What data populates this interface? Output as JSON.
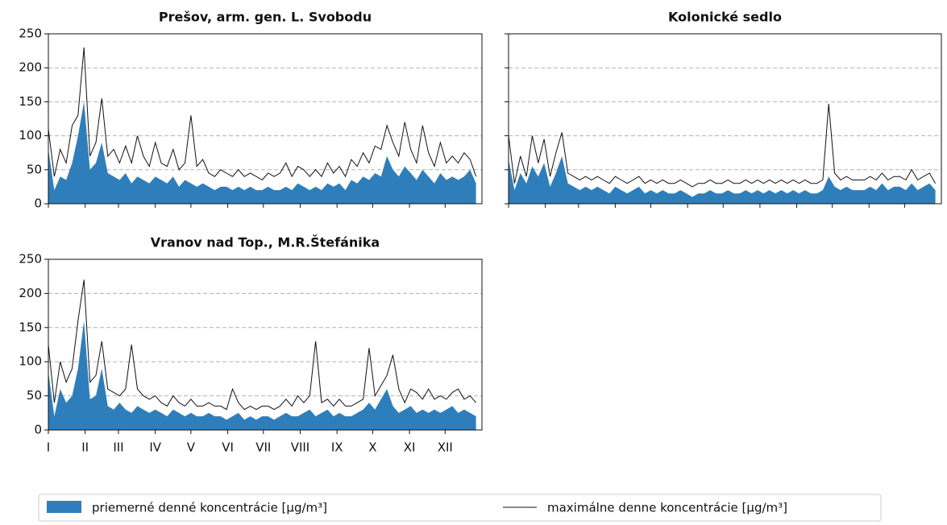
{
  "chart_data": [
    {
      "type": "line",
      "title": "Prešov, arm. gen. L. Svobodu",
      "x": [
        1,
        6,
        11,
        16,
        21,
        26,
        31,
        36,
        41,
        46,
        51,
        56,
        61,
        66,
        71,
        76,
        81,
        86,
        91,
        96,
        101,
        106,
        111,
        116,
        121,
        126,
        131,
        136,
        141,
        146,
        151,
        156,
        161,
        166,
        171,
        176,
        181,
        186,
        191,
        196,
        201,
        206,
        211,
        216,
        221,
        226,
        231,
        236,
        241,
        246,
        251,
        256,
        261,
        266,
        271,
        276,
        281,
        286,
        291,
        296,
        301,
        306,
        311,
        316,
        321,
        326,
        331,
        336,
        341,
        346,
        351,
        356,
        361
      ],
      "xlim": [
        1,
        366
      ],
      "xticks": [
        1,
        32,
        60,
        91,
        121,
        152,
        182,
        213,
        244,
        274,
        305,
        335
      ],
      "ylim": [
        0,
        250
      ],
      "yticks": [
        0,
        50,
        100,
        150,
        200,
        250
      ],
      "grid": true,
      "series": [
        {
          "name": "priemerné denné koncentrácie [µg/m³]",
          "color": "#2f7ebc",
          "fill": true,
          "values": [
            80,
            20,
            40,
            35,
            60,
            100,
            150,
            50,
            60,
            90,
            45,
            40,
            35,
            45,
            30,
            40,
            35,
            30,
            40,
            35,
            30,
            40,
            25,
            35,
            30,
            25,
            30,
            25,
            20,
            25,
            25,
            20,
            25,
            20,
            25,
            20,
            20,
            25,
            20,
            20,
            25,
            20,
            30,
            25,
            20,
            25,
            20,
            30,
            25,
            30,
            20,
            35,
            30,
            40,
            35,
            45,
            40,
            70,
            50,
            40,
            55,
            45,
            35,
            50,
            40,
            30,
            45,
            35,
            40,
            35,
            40,
            50,
            30
          ]
        },
        {
          "name": "maximálne denne koncentrácie [µg/m³]",
          "color": "#111111",
          "fill": false,
          "values": [
            110,
            40,
            80,
            60,
            115,
            130,
            230,
            70,
            90,
            155,
            70,
            80,
            60,
            85,
            60,
            100,
            70,
            55,
            90,
            60,
            55,
            80,
            50,
            60,
            130,
            55,
            65,
            45,
            40,
            50,
            45,
            40,
            50,
            40,
            45,
            40,
            35,
            45,
            40,
            45,
            60,
            40,
            55,
            50,
            40,
            50,
            40,
            60,
            45,
            55,
            40,
            65,
            55,
            75,
            60,
            85,
            80,
            115,
            90,
            70,
            120,
            80,
            60,
            115,
            75,
            55,
            90,
            60,
            70,
            60,
            75,
            65,
            40
          ]
        }
      ]
    },
    {
      "type": "line",
      "title": "Kolonické sedlo",
      "x": [
        1,
        6,
        11,
        16,
        21,
        26,
        31,
        36,
        41,
        46,
        51,
        56,
        61,
        66,
        71,
        76,
        81,
        86,
        91,
        96,
        101,
        106,
        111,
        116,
        121,
        126,
        131,
        136,
        141,
        146,
        151,
        156,
        161,
        166,
        171,
        176,
        181,
        186,
        191,
        196,
        201,
        206,
        211,
        216,
        221,
        226,
        231,
        236,
        241,
        246,
        251,
        256,
        261,
        266,
        271,
        276,
        281,
        286,
        291,
        296,
        301,
        306,
        311,
        316,
        321,
        326,
        331,
        336,
        341,
        346,
        351,
        356,
        361
      ],
      "xlim": [
        1,
        366
      ],
      "xticks": [
        1,
        32,
        60,
        91,
        121,
        152,
        182,
        213,
        244,
        274,
        305,
        335
      ],
      "ylim": [
        0,
        250
      ],
      "yticks": [
        0,
        50,
        100,
        150,
        200,
        250
      ],
      "ytick_labels": false,
      "grid": true,
      "series": [
        {
          "color": "#2f7ebc",
          "fill": true,
          "values": [
            65,
            20,
            45,
            30,
            55,
            40,
            60,
            25,
            45,
            70,
            30,
            25,
            20,
            25,
            20,
            25,
            20,
            15,
            25,
            20,
            15,
            20,
            25,
            15,
            20,
            15,
            20,
            15,
            15,
            20,
            15,
            10,
            15,
            15,
            20,
            15,
            15,
            20,
            15,
            15,
            20,
            15,
            20,
            15,
            20,
            15,
            20,
            15,
            20,
            15,
            20,
            15,
            15,
            20,
            40,
            25,
            20,
            25,
            20,
            20,
            20,
            25,
            20,
            30,
            20,
            25,
            25,
            20,
            30,
            20,
            25,
            30,
            20
          ]
        },
        {
          "color": "#111111",
          "fill": false,
          "values": [
            100,
            30,
            70,
            40,
            100,
            60,
            95,
            40,
            75,
            105,
            45,
            40,
            35,
            40,
            35,
            40,
            35,
            30,
            40,
            35,
            30,
            35,
            40,
            30,
            35,
            30,
            35,
            30,
            30,
            35,
            30,
            25,
            30,
            30,
            35,
            30,
            30,
            35,
            30,
            30,
            35,
            30,
            35,
            30,
            35,
            30,
            35,
            30,
            35,
            30,
            35,
            30,
            30,
            35,
            147,
            45,
            35,
            40,
            35,
            35,
            35,
            40,
            35,
            45,
            35,
            40,
            40,
            35,
            50,
            35,
            40,
            45,
            30
          ]
        }
      ]
    },
    {
      "type": "line",
      "title": "Vranov nad Top., M.R.Štefánika",
      "x": [
        1,
        6,
        11,
        16,
        21,
        26,
        31,
        36,
        41,
        46,
        51,
        56,
        61,
        66,
        71,
        76,
        81,
        86,
        91,
        96,
        101,
        106,
        111,
        116,
        121,
        126,
        131,
        136,
        141,
        146,
        151,
        156,
        161,
        166,
        171,
        176,
        181,
        186,
        191,
        196,
        201,
        206,
        211,
        216,
        221,
        226,
        231,
        236,
        241,
        246,
        251,
        256,
        261,
        266,
        271,
        276,
        281,
        286,
        291,
        296,
        301,
        306,
        311,
        316,
        321,
        326,
        331,
        336,
        341,
        346,
        351,
        356,
        361
      ],
      "xlim": [
        1,
        366
      ],
      "xticks": [
        {
          "value": 1,
          "label": "I"
        },
        {
          "value": 32,
          "label": "II"
        },
        {
          "value": 60,
          "label": "III"
        },
        {
          "value": 91,
          "label": "IV"
        },
        {
          "value": 121,
          "label": "V"
        },
        {
          "value": 152,
          "label": "VI"
        },
        {
          "value": 182,
          "label": "VII"
        },
        {
          "value": 213,
          "label": "VIII"
        },
        {
          "value": 244,
          "label": "IX"
        },
        {
          "value": 274,
          "label": "X"
        },
        {
          "value": 305,
          "label": "XI"
        },
        {
          "value": 335,
          "label": "XII"
        }
      ],
      "ylim": [
        0,
        250
      ],
      "yticks": [
        0,
        50,
        100,
        150,
        200,
        250
      ],
      "grid": true,
      "series": [
        {
          "color": "#2f7ebc",
          "fill": true,
          "values": [
            85,
            20,
            60,
            40,
            50,
            90,
            160,
            45,
            50,
            90,
            35,
            30,
            40,
            30,
            25,
            35,
            30,
            25,
            30,
            25,
            20,
            30,
            25,
            20,
            25,
            20,
            20,
            25,
            20,
            20,
            15,
            20,
            25,
            15,
            20,
            15,
            20,
            20,
            15,
            20,
            25,
            20,
            20,
            25,
            30,
            20,
            25,
            30,
            20,
            25,
            20,
            20,
            25,
            30,
            40,
            30,
            45,
            60,
            35,
            25,
            30,
            35,
            25,
            30,
            25,
            30,
            25,
            30,
            35,
            25,
            30,
            25,
            20
          ]
        },
        {
          "color": "#111111",
          "fill": false,
          "values": [
            125,
            40,
            100,
            70,
            90,
            160,
            220,
            70,
            80,
            130,
            60,
            55,
            50,
            60,
            125,
            60,
            50,
            45,
            50,
            40,
            35,
            50,
            40,
            35,
            45,
            35,
            35,
            40,
            35,
            35,
            30,
            60,
            40,
            30,
            35,
            30,
            35,
            35,
            30,
            35,
            45,
            35,
            50,
            40,
            50,
            130,
            40,
            45,
            35,
            45,
            35,
            35,
            40,
            45,
            120,
            50,
            65,
            80,
            110,
            60,
            40,
            60,
            55,
            45,
            60,
            45,
            50,
            45,
            55,
            60,
            45,
            50,
            40
          ]
        }
      ]
    }
  ]
}
